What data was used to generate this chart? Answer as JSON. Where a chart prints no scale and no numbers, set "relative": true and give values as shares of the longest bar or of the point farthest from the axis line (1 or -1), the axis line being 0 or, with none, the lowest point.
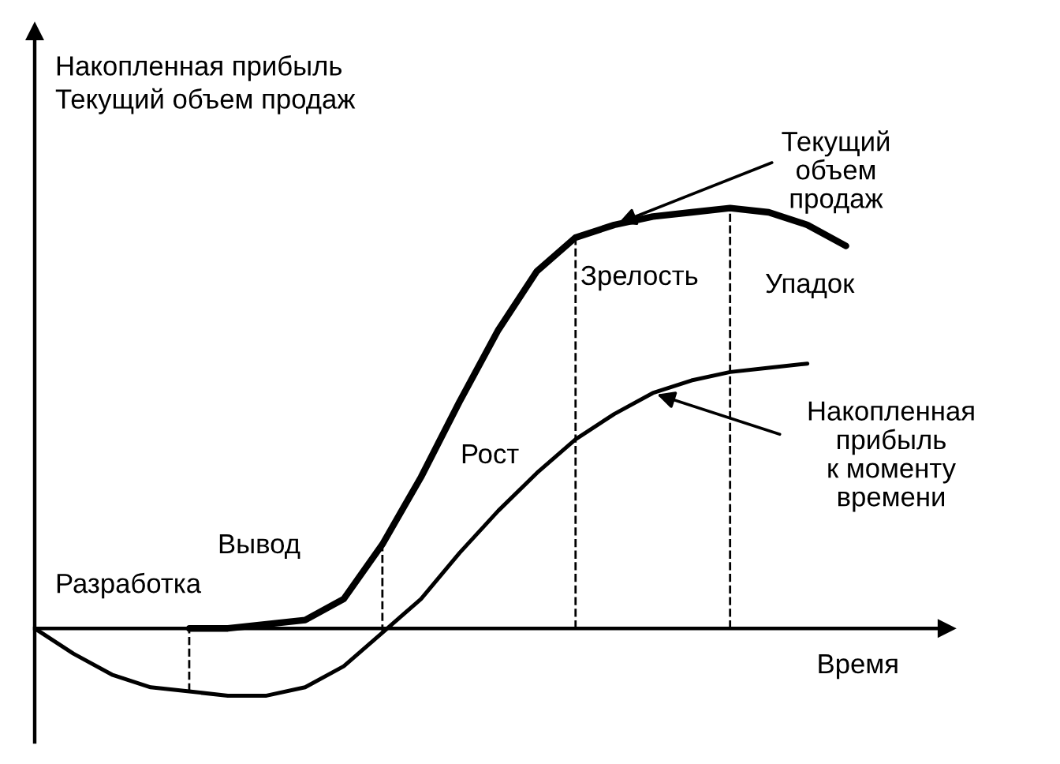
{
  "chart_data": {
    "type": "line",
    "relative": true,
    "ylabel": "Накопленная прибыль\nТекущий объем продаж",
    "xlabel": "Время",
    "categories": [
      null,
      null,
      null,
      null,
      null,
      null,
      null,
      null,
      null,
      null,
      null,
      null,
      null,
      null,
      null,
      null,
      null,
      null,
      null,
      null,
      null,
      null,
      null,
      null
    ],
    "series": [
      {
        "name": "Текущий\nобъем\nпродаж",
        "color": "#000000",
        "values": [
          null,
          null,
          null,
          null,
          0,
          0,
          0.01,
          0.02,
          0.07,
          0.2,
          0.36,
          0.54,
          0.71,
          0.85,
          0.93,
          0.96,
          0.98,
          0.99,
          1,
          0.99,
          0.96,
          0.91,
          null,
          null
        ]
      },
      {
        "name": "Накопленная\nприбыль\nк моменту\nвремени",
        "color": "#000000",
        "values": [
          0,
          -0.06,
          -0.11,
          -0.14,
          -0.15,
          -0.16,
          -0.16,
          -0.14,
          -0.09,
          -0.01,
          0.07,
          0.18,
          0.28,
          0.37,
          0.45,
          0.51,
          0.56,
          0.59,
          0.61,
          0.62,
          0.63,
          null,
          null,
          null
        ]
      }
    ],
    "annotations": [
      "Разработка",
      "Вывод",
      "Рост",
      "Зрелость",
      "Упадок"
    ],
    "grid": false,
    "legend": "right",
    "marker": "none",
    "line_style": "solid"
  }
}
